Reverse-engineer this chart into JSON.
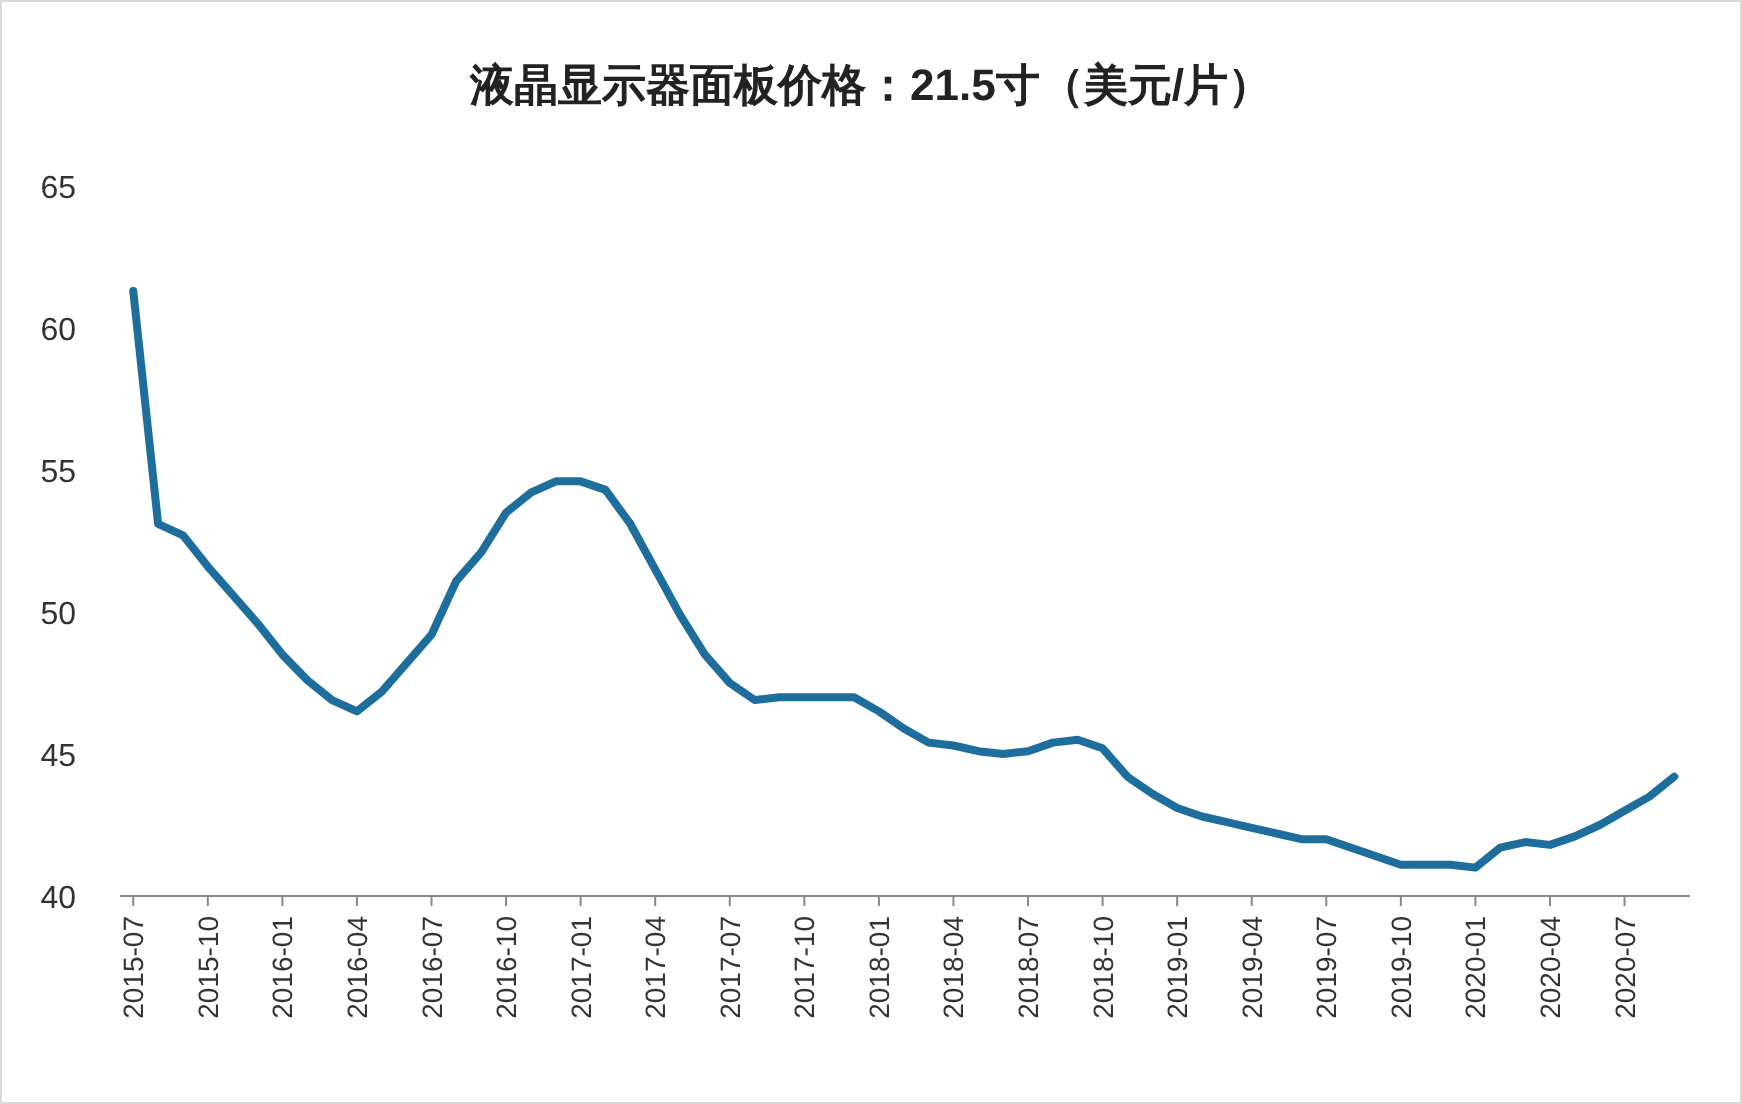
{
  "chart_data": {
    "type": "line",
    "title": "液晶显示器面板价格：21.5寸（美元/片）",
    "x": [
      "2015-07",
      "2015-08",
      "2015-09",
      "2015-10",
      "2015-11",
      "2015-12",
      "2016-01",
      "2016-02",
      "2016-03",
      "2016-04",
      "2016-05",
      "2016-06",
      "2016-07",
      "2016-08",
      "2016-09",
      "2016-10",
      "2016-11",
      "2016-12",
      "2017-01",
      "2017-02",
      "2017-03",
      "2017-04",
      "2017-05",
      "2017-06",
      "2017-07",
      "2017-08",
      "2017-09",
      "2017-10",
      "2017-11",
      "2017-12",
      "2018-01",
      "2018-02",
      "2018-03",
      "2018-04",
      "2018-05",
      "2018-06",
      "2018-07",
      "2018-08",
      "2018-09",
      "2018-10",
      "2018-11",
      "2018-12",
      "2019-01",
      "2019-02",
      "2019-03",
      "2019-04",
      "2019-05",
      "2019-06",
      "2019-07",
      "2019-08",
      "2019-09",
      "2019-10",
      "2019-11",
      "2019-12",
      "2020-01",
      "2020-02",
      "2020-03",
      "2020-04",
      "2020-05",
      "2020-06",
      "2020-07",
      "2020-08",
      "2020-09"
    ],
    "series": [
      {
        "color": "#1d6e9c",
        "values": [
          61.3,
          53.1,
          52.7,
          51.6,
          50.6,
          49.6,
          48.5,
          47.6,
          46.9,
          46.5,
          47.2,
          48.2,
          49.2,
          51.1,
          52.1,
          53.5,
          54.2,
          54.6,
          54.6,
          54.3,
          53.1,
          51.5,
          49.9,
          48.5,
          47.5,
          46.9,
          47.0,
          47.0,
          47.0,
          47.0,
          46.5,
          45.9,
          45.4,
          45.3,
          45.1,
          45.0,
          45.1,
          45.4,
          45.5,
          45.2,
          44.2,
          43.6,
          43.1,
          42.8,
          42.6,
          42.4,
          42.2,
          42.0,
          42.0,
          41.7,
          41.4,
          41.1,
          41.1,
          41.1,
          41.0,
          41.7,
          41.9,
          41.8,
          42.1,
          42.5,
          43.0,
          43.5,
          44.2
        ]
      }
    ],
    "xlim": [
      "2015-06-15",
      "2020-09-20"
    ],
    "xticks": [
      "2015-07",
      "2015-10",
      "2016-01",
      "2016-04",
      "2016-07",
      "2016-10",
      "2017-01",
      "2017-04",
      "2017-07",
      "2017-10",
      "2018-01",
      "2018-04",
      "2018-07",
      "2018-10",
      "2019-01",
      "2019-04",
      "2019-07",
      "2019-10",
      "2020-01",
      "2020-04",
      "2020-07"
    ],
    "ylim": [
      40,
      65
    ],
    "yticks": [
      40,
      45,
      50,
      55,
      60,
      65
    ],
    "grid": false,
    "marker": "none",
    "line_style": "solid"
  }
}
